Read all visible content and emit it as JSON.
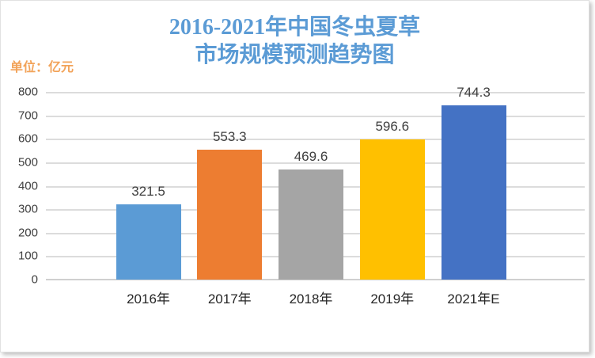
{
  "page": {
    "title_line1": "2016-2021年中国冬虫夏草",
    "title_line2": "市场规模预测趋势图",
    "unit_label": "单位：亿元"
  },
  "chart_data": {
    "type": "bar",
    "title": "2016-2021年中国冬虫夏草市场规模预测趋势图",
    "unit": "亿元",
    "categories": [
      "2016年",
      "2017年",
      "2018年",
      "2019年",
      "2021年E"
    ],
    "values": [
      321.5,
      553.3,
      469.6,
      596.6,
      744.3
    ],
    "value_labels": [
      "321.5",
      "553.3",
      "469.6",
      "596.6",
      "744.3"
    ],
    "bar_colors": [
      "#5B9BD5",
      "#ED7D31",
      "#A5A5A5",
      "#FFC000",
      "#4472C4"
    ],
    "xlabel": "",
    "ylabel": "",
    "ylim": [
      0,
      800
    ],
    "yticks": [
      0,
      100,
      200,
      300,
      400,
      500,
      600,
      700,
      800
    ],
    "grid": true,
    "legend_position": "none",
    "colors": {
      "title": "#5B9BD5",
      "unit_label": "#F2A359",
      "axis_text": "#404040",
      "gridline": "#DCDCDC"
    }
  }
}
